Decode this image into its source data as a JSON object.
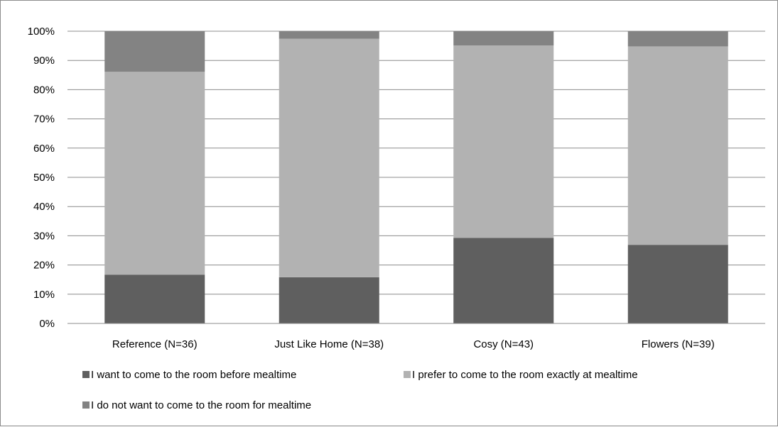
{
  "chart_data": {
    "type": "bar",
    "stacked": true,
    "percent": true,
    "categories": [
      "Reference (N=36)",
      "Just Like Home (N=38)",
      "Cosy (N=43)",
      "Flowers (N=39)"
    ],
    "series": [
      {
        "name": "I want to come to the room before mealtime",
        "color": "#5f5f5f",
        "values": [
          16.7,
          15.8,
          29.3,
          26.9
        ]
      },
      {
        "name": "I prefer to come to the room exactly at mealtime",
        "color": "#b2b2b2",
        "values": [
          69.4,
          81.6,
          65.8,
          67.9
        ]
      },
      {
        "name": "I do not want to come to the room for mealtime",
        "color": "#838383",
        "values": [
          13.9,
          2.6,
          4.9,
          5.2
        ]
      }
    ],
    "y_ticks": [
      "0%",
      "10%",
      "20%",
      "30%",
      "40%",
      "50%",
      "60%",
      "70%",
      "80%",
      "90%",
      "100%"
    ],
    "ylim": [
      0,
      100
    ],
    "grid": true,
    "legend_position": "bottom",
    "title": "",
    "xlabel": "",
    "ylabel": ""
  }
}
